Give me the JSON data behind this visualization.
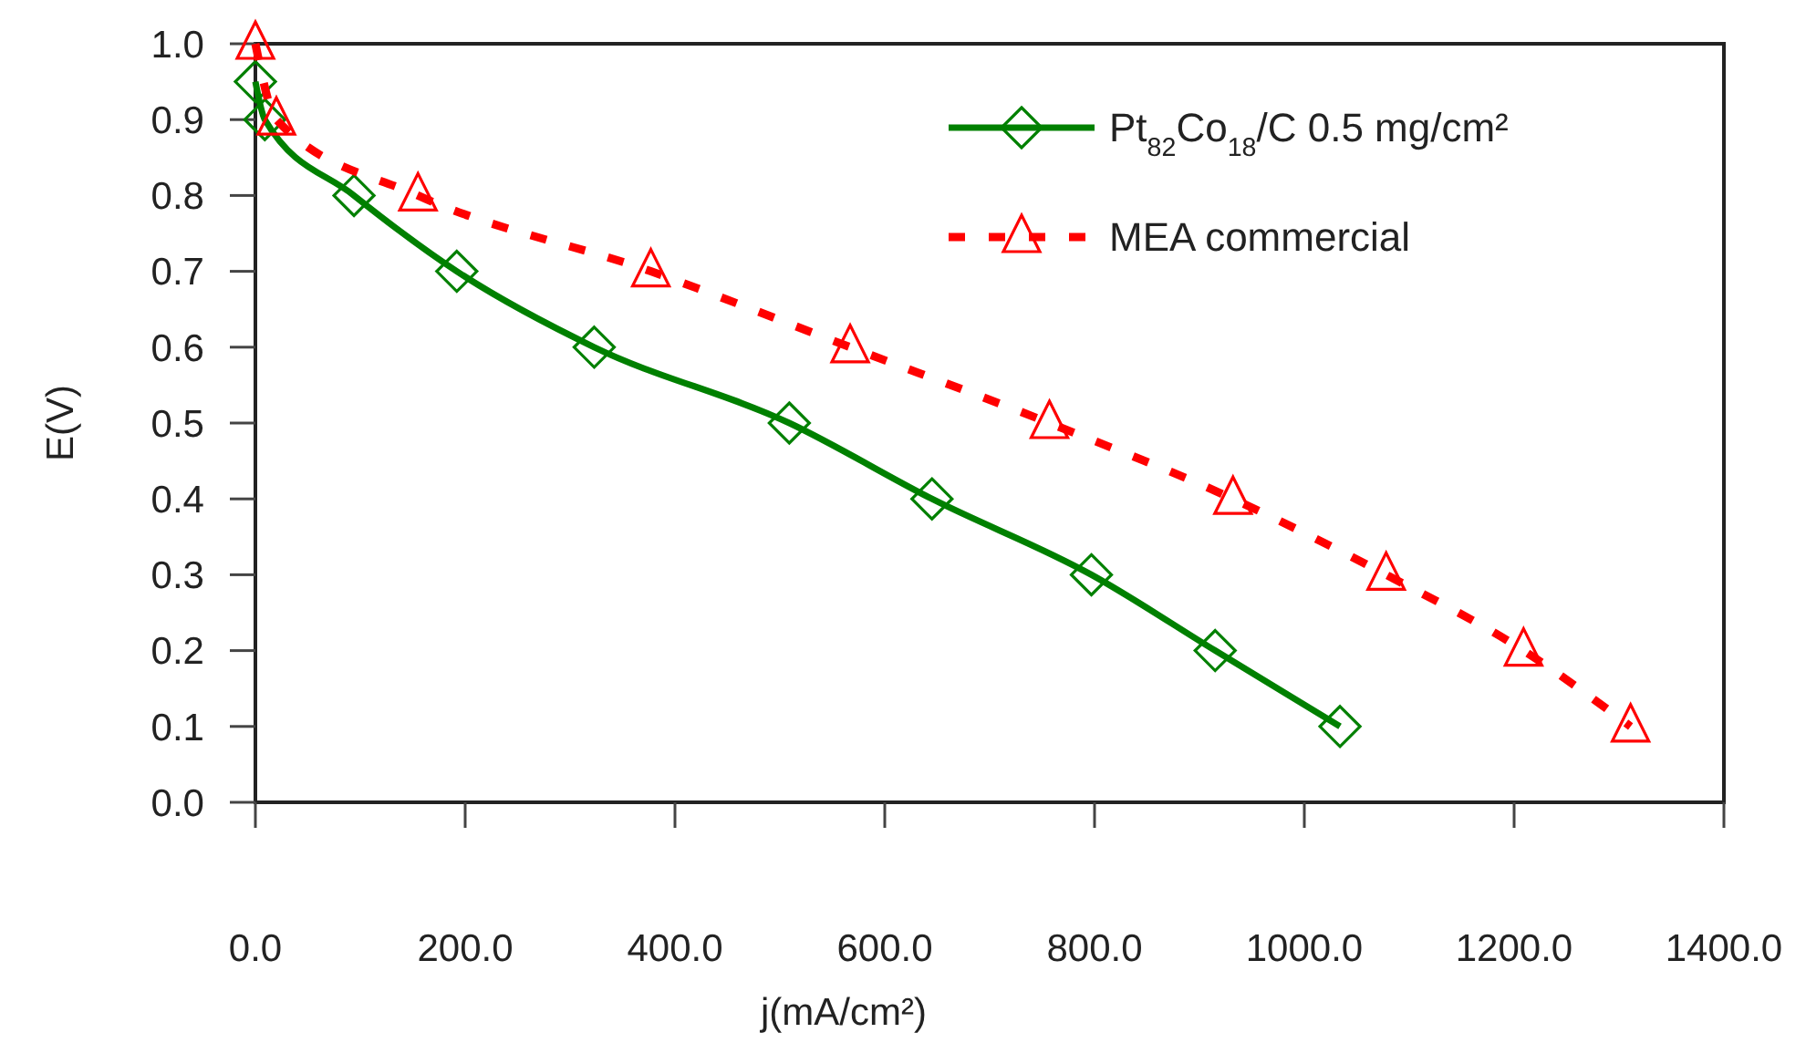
{
  "chart_data": {
    "type": "line",
    "xlabel": "j(mA/cm²)",
    "ylabel": "E(V)",
    "xlim": [
      0,
      1400
    ],
    "xticks": [
      {
        "value": 0,
        "label": "0.0"
      },
      {
        "value": 200,
        "label": "200.0"
      },
      {
        "value": 400,
        "label": "400.0"
      },
      {
        "value": 600,
        "label": "600.0"
      },
      {
        "value": 800,
        "label": "800.0"
      },
      {
        "value": 1000,
        "label": "1000.0"
      },
      {
        "value": 1200,
        "label": "1200.0"
      },
      {
        "value": 1400,
        "label": "1400.0"
      }
    ],
    "ylim": [
      0,
      1
    ],
    "yticks": [
      {
        "value": 0,
        "label": "0.0"
      },
      {
        "value": 0.1,
        "label": "0.1"
      },
      {
        "value": 0.2,
        "label": "0.2"
      },
      {
        "value": 0.3,
        "label": "0.3"
      },
      {
        "value": 0.4,
        "label": "0.4"
      },
      {
        "value": 0.5,
        "label": "0.5"
      },
      {
        "value": 0.6,
        "label": "0.6"
      },
      {
        "value": 0.7,
        "label": "0.7"
      },
      {
        "value": 0.8,
        "label": "0.8"
      },
      {
        "value": 0.9,
        "label": "0.9"
      },
      {
        "value": 1,
        "label": "1.0"
      }
    ],
    "grid": false,
    "legend": "top right",
    "series": [
      {
        "name": "Pt$_{82}$Co$_{18}$/C  0.5 mg/cm²",
        "color": "#008000",
        "marker": "diamond",
        "line_style": "solid",
        "x": [
          0,
          9,
          94,
          192,
          323,
          509,
          645,
          797,
          915,
          1034
        ],
        "values": [
          0.95,
          0.9,
          0.8,
          0.7,
          0.6,
          0.5,
          0.4,
          0.3,
          0.2,
          0.1
        ]
      },
      {
        "name": "MEA commercial",
        "color": "#ff0000",
        "marker": "triangle",
        "line_style": "dashed",
        "x": [
          0,
          20,
          155,
          377,
          567,
          757,
          932,
          1078,
          1209,
          1311
        ],
        "values": [
          1,
          0.9,
          0.8,
          0.7,
          0.6,
          0.5,
          0.4,
          0.3,
          0.2,
          0.1
        ]
      }
    ]
  }
}
